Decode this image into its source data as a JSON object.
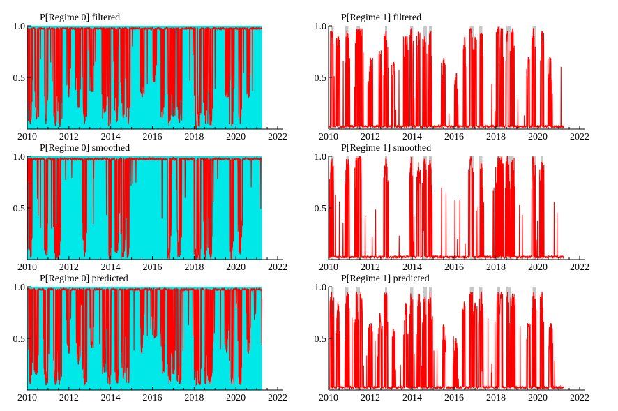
{
  "figure": {
    "colors": {
      "regime0_shade": "#00e8e8",
      "regime1_shade": "#c8c8c8",
      "probability_line": "#ff0000",
      "axis": "#000000"
    }
  },
  "chart_data": [
    {
      "id": "r0-filtered",
      "type": "area",
      "title": "P[Regime 0] filtered",
      "xlim": [
        2010,
        2022
      ],
      "ylim": [
        0,
        1
      ],
      "xticks": [
        "2010",
        "2012",
        "2014",
        "2016",
        "2018",
        "2020",
        "2022"
      ],
      "yticks": [
        "0.5",
        "1.0"
      ],
      "shade_intervals": [
        [
          2010.0,
          2021.25
        ]
      ],
      "series": [
        {
          "name": "filtered probability",
          "x_start": 2010.0,
          "x_end": 2021.25,
          "dips": [
            [
              2010.15,
              0.05
            ],
            [
              2010.45,
              0.1
            ],
            [
              2010.9,
              0.05
            ],
            [
              2011.35,
              0.03
            ],
            [
              2011.55,
              0.02
            ],
            [
              2012.0,
              0.3
            ],
            [
              2012.45,
              0.2
            ],
            [
              2012.75,
              0.05
            ],
            [
              2013.1,
              0.35
            ],
            [
              2013.7,
              0.1
            ],
            [
              2013.95,
              0.02
            ],
            [
              2014.3,
              0.05
            ],
            [
              2014.6,
              0.1
            ],
            [
              2014.85,
              0.05
            ],
            [
              2015.5,
              0.3
            ],
            [
              2016.1,
              0.45
            ],
            [
              2016.5,
              0.1
            ],
            [
              2016.8,
              0.02
            ],
            [
              2017.0,
              0.1
            ],
            [
              2017.3,
              0.05
            ],
            [
              2018.1,
              0.0
            ],
            [
              2018.25,
              0.02
            ],
            [
              2018.55,
              0.05
            ],
            [
              2018.8,
              0.02
            ],
            [
              2019.55,
              0.3
            ],
            [
              2019.8,
              0.02
            ],
            [
              2020.2,
              0.05
            ],
            [
              2020.6,
              0.3
            ]
          ]
        }
      ]
    },
    {
      "id": "r1-filtered",
      "type": "area",
      "title": "P[Regime 1] filtered",
      "xlim": [
        2010,
        2022
      ],
      "ylim": [
        0,
        1
      ],
      "xticks": [
        "2010",
        "2012",
        "2014",
        "2016",
        "2018",
        "2020",
        "2022"
      ],
      "yticks": [
        "0.5",
        "1.0"
      ],
      "shade_intervals": [
        [
          2010.1,
          2010.25
        ],
        [
          2010.8,
          2010.95
        ],
        [
          2011.3,
          2011.5
        ],
        [
          2012.7,
          2012.8
        ],
        [
          2013.9,
          2014.05
        ],
        [
          2014.5,
          2014.7
        ],
        [
          2014.8,
          2014.95
        ],
        [
          2016.75,
          2016.95
        ],
        [
          2017.2,
          2017.35
        ],
        [
          2018.05,
          2018.2
        ],
        [
          2018.5,
          2018.7
        ],
        [
          2019.75,
          2019.9
        ]
      ],
      "series": [
        {
          "name": "filtered probability",
          "x_start": 2010.0,
          "x_end": 2021.25,
          "peaks": [
            [
              2010.15,
              0.95
            ],
            [
              2010.45,
              0.9
            ],
            [
              2010.9,
              0.95
            ],
            [
              2011.35,
              0.97
            ],
            [
              2011.55,
              0.98
            ],
            [
              2012.0,
              0.7
            ],
            [
              2012.45,
              0.8
            ],
            [
              2012.75,
              0.95
            ],
            [
              2013.1,
              0.65
            ],
            [
              2013.7,
              0.9
            ],
            [
              2013.95,
              0.98
            ],
            [
              2014.3,
              0.95
            ],
            [
              2014.6,
              0.9
            ],
            [
              2014.85,
              0.95
            ],
            [
              2015.5,
              0.7
            ],
            [
              2016.1,
              0.55
            ],
            [
              2016.5,
              0.9
            ],
            [
              2016.8,
              0.98
            ],
            [
              2017.0,
              0.9
            ],
            [
              2017.3,
              0.95
            ],
            [
              2018.1,
              1.0
            ],
            [
              2018.25,
              0.98
            ],
            [
              2018.55,
              0.95
            ],
            [
              2018.8,
              0.98
            ],
            [
              2019.55,
              0.7
            ],
            [
              2019.8,
              0.98
            ],
            [
              2020.2,
              0.95
            ],
            [
              2020.6,
              0.7
            ]
          ]
        }
      ]
    },
    {
      "id": "r0-smoothed",
      "type": "area",
      "title": "P[Regime 0] smoothed",
      "xlim": [
        2010,
        2022
      ],
      "ylim": [
        0,
        1
      ],
      "xticks": [
        "2010",
        "2012",
        "2014",
        "2016",
        "2018",
        "2020",
        "2022"
      ],
      "yticks": [
        "0.5",
        "1.0"
      ],
      "shade_intervals": [
        [
          2010.0,
          2021.25
        ]
      ],
      "series": [
        {
          "name": "smoothed probability",
          "x_start": 2010.0,
          "x_end": 2021.25,
          "dips": [
            [
              2010.15,
              0.02
            ],
            [
              2010.9,
              0.02
            ],
            [
              2011.35,
              0.0
            ],
            [
              2011.5,
              0.0
            ],
            [
              2012.75,
              0.02
            ],
            [
              2013.95,
              0.0
            ],
            [
              2014.3,
              0.05
            ],
            [
              2014.6,
              0.02
            ],
            [
              2014.85,
              0.02
            ],
            [
              2016.8,
              0.0
            ],
            [
              2017.3,
              0.02
            ],
            [
              2018.1,
              0.0
            ],
            [
              2018.25,
              0.0
            ],
            [
              2018.55,
              0.0
            ],
            [
              2018.8,
              0.0
            ],
            [
              2019.8,
              0.0
            ],
            [
              2020.2,
              0.05
            ]
          ]
        }
      ]
    },
    {
      "id": "r1-smoothed",
      "type": "area",
      "title": "P[Regime 1] smoothed",
      "xlim": [
        2010,
        2022
      ],
      "ylim": [
        0,
        1
      ],
      "xticks": [
        "2010",
        "2012",
        "2014",
        "2016",
        "2018",
        "2020",
        "2022"
      ],
      "yticks": [
        "0.5",
        "1.0"
      ],
      "shade_intervals": [
        [
          2010.1,
          2010.25
        ],
        [
          2010.85,
          2011.0
        ],
        [
          2011.3,
          2011.55
        ],
        [
          2012.7,
          2012.8
        ],
        [
          2013.9,
          2014.05
        ],
        [
          2014.5,
          2014.7
        ],
        [
          2014.8,
          2014.95
        ],
        [
          2016.75,
          2016.95
        ],
        [
          2017.2,
          2017.35
        ],
        [
          2018.05,
          2018.3
        ],
        [
          2018.5,
          2018.85
        ],
        [
          2019.75,
          2019.9
        ],
        [
          2020.15,
          2020.25
        ]
      ],
      "series": [
        {
          "name": "smoothed probability",
          "x_start": 2010.0,
          "x_end": 2021.25,
          "peaks": [
            [
              2010.15,
              0.98
            ],
            [
              2010.9,
              0.98
            ],
            [
              2011.35,
              1.0
            ],
            [
              2011.5,
              1.0
            ],
            [
              2012.75,
              0.98
            ],
            [
              2013.95,
              1.0
            ],
            [
              2014.3,
              0.95
            ],
            [
              2014.6,
              0.98
            ],
            [
              2014.85,
              0.98
            ],
            [
              2016.8,
              1.0
            ],
            [
              2017.3,
              0.98
            ],
            [
              2018.1,
              1.0
            ],
            [
              2018.25,
              1.0
            ],
            [
              2018.55,
              1.0
            ],
            [
              2018.8,
              1.0
            ],
            [
              2019.8,
              1.0
            ],
            [
              2020.2,
              0.95
            ]
          ]
        }
      ]
    },
    {
      "id": "r0-predicted",
      "type": "area",
      "title": "P[Regime 0] predicted",
      "xlim": [
        2010,
        2022
      ],
      "ylim": [
        0,
        1
      ],
      "xticks": [
        "2010",
        "2012",
        "2014",
        "2016",
        "2018",
        "2020",
        "2022"
      ],
      "yticks": [
        "0.5",
        "1.0"
      ],
      "shade_intervals": [
        [
          2010.0,
          2021.25
        ]
      ],
      "series": [
        {
          "name": "predicted probability",
          "x_start": 2010.0,
          "x_end": 2021.25,
          "dips": [
            [
              2010.15,
              0.05
            ],
            [
              2010.45,
              0.15
            ],
            [
              2010.9,
              0.05
            ],
            [
              2011.35,
              0.05
            ],
            [
              2011.55,
              0.05
            ],
            [
              2012.0,
              0.35
            ],
            [
              2012.45,
              0.25
            ],
            [
              2012.75,
              0.05
            ],
            [
              2013.1,
              0.4
            ],
            [
              2013.7,
              0.15
            ],
            [
              2013.95,
              0.05
            ],
            [
              2014.3,
              0.05
            ],
            [
              2014.6,
              0.1
            ],
            [
              2014.85,
              0.05
            ],
            [
              2015.5,
              0.35
            ],
            [
              2016.1,
              0.5
            ],
            [
              2016.5,
              0.15
            ],
            [
              2016.8,
              0.05
            ],
            [
              2017.0,
              0.15
            ],
            [
              2017.3,
              0.05
            ],
            [
              2018.1,
              0.05
            ],
            [
              2018.25,
              0.05
            ],
            [
              2018.55,
              0.05
            ],
            [
              2018.8,
              0.05
            ],
            [
              2019.55,
              0.35
            ],
            [
              2019.8,
              0.05
            ],
            [
              2020.2,
              0.05
            ],
            [
              2020.6,
              0.35
            ]
          ]
        }
      ]
    },
    {
      "id": "r1-predicted",
      "type": "area",
      "title": "P[Regime 1] predicted",
      "xlim": [
        2010,
        2022
      ],
      "ylim": [
        0,
        1
      ],
      "xticks": [
        "2010",
        "2012",
        "2014",
        "2016",
        "2018",
        "2020",
        "2022"
      ],
      "yticks": [
        "0.5",
        "1.0"
      ],
      "shade_intervals": [
        [
          2010.1,
          2010.25
        ],
        [
          2010.8,
          2010.95
        ],
        [
          2011.3,
          2011.5
        ],
        [
          2012.7,
          2012.8
        ],
        [
          2013.9,
          2014.05
        ],
        [
          2014.5,
          2014.7
        ],
        [
          2014.8,
          2014.95
        ],
        [
          2016.75,
          2016.95
        ],
        [
          2017.2,
          2017.35
        ],
        [
          2018.05,
          2018.2
        ],
        [
          2018.5,
          2018.7
        ],
        [
          2019.75,
          2019.9
        ]
      ],
      "series": [
        {
          "name": "predicted probability",
          "x_start": 2010.0,
          "x_end": 2021.25,
          "peaks": [
            [
              2010.15,
              0.95
            ],
            [
              2010.45,
              0.85
            ],
            [
              2010.9,
              0.95
            ],
            [
              2011.35,
              0.95
            ],
            [
              2011.55,
              0.95
            ],
            [
              2012.0,
              0.65
            ],
            [
              2012.45,
              0.75
            ],
            [
              2012.75,
              0.95
            ],
            [
              2013.1,
              0.6
            ],
            [
              2013.7,
              0.85
            ],
            [
              2013.95,
              0.95
            ],
            [
              2014.3,
              0.95
            ],
            [
              2014.6,
              0.9
            ],
            [
              2014.85,
              0.95
            ],
            [
              2015.5,
              0.65
            ],
            [
              2016.1,
              0.5
            ],
            [
              2016.5,
              0.85
            ],
            [
              2016.8,
              0.95
            ],
            [
              2017.0,
              0.85
            ],
            [
              2017.3,
              0.95
            ],
            [
              2018.1,
              0.95
            ],
            [
              2018.25,
              0.95
            ],
            [
              2018.55,
              0.95
            ],
            [
              2018.8,
              0.95
            ],
            [
              2019.55,
              0.65
            ],
            [
              2019.8,
              0.95
            ],
            [
              2020.2,
              0.95
            ],
            [
              2020.6,
              0.65
            ]
          ]
        }
      ]
    }
  ]
}
